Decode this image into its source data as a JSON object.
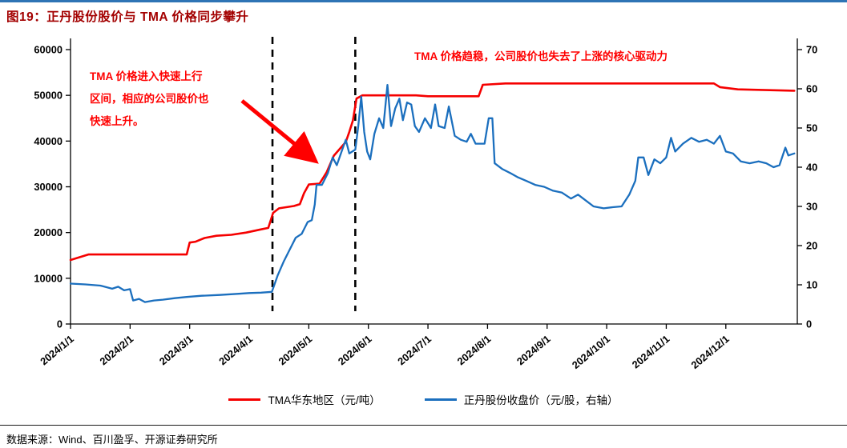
{
  "title": "图19：正丹股份股价与 TMA 价格同步攀升",
  "colors": {
    "topbar_blue": "#2E74B5",
    "title_red": "#A30000",
    "annotation_red": "#FF0000",
    "tma_red": "#F50000",
    "stock_blue": "#1B6FBE",
    "axis_black": "#000000"
  },
  "annotations": {
    "left": {
      "lines": [
        "TMA 价格进入快速上行",
        "区间，相应的公司股价也",
        "快速上升。"
      ]
    },
    "right": "TMA 价格趋稳，公司股价也失去了上涨的核心驱动力"
  },
  "source": "数据来源：Wind、百川盈孚、开源证券研究所",
  "chart_data": {
    "type": "line",
    "title": "图19：正丹股份股价与 TMA 价格同步攀升",
    "x_axis": {
      "domain": [
        0,
        12.2
      ],
      "tick_labels": [
        "2024/1/1",
        "2024/2/1",
        "2024/3/1",
        "2024/4/1",
        "2024/5/1",
        "2024/6/1",
        "2024/7/1",
        "2024/8/1",
        "2024/9/1",
        "2024/10/1",
        "2024/11/1",
        "2024/12/1"
      ]
    },
    "y_left": {
      "min": 0,
      "max": 60000,
      "step": 10000
    },
    "y_right": {
      "min": 0,
      "max": 70,
      "step": 10
    },
    "grid": false,
    "legend_position": "bottom",
    "event_vlines": [
      3.39,
      4.78
    ],
    "series": [
      {
        "name": "TMA华东地区（元/吨）",
        "axis": "left",
        "color": "#F50000",
        "points": [
          [
            0.0,
            14000
          ],
          [
            0.3,
            15200
          ],
          [
            1.0,
            15200
          ],
          [
            1.95,
            15200
          ],
          [
            2.0,
            17800
          ],
          [
            2.1,
            18000
          ],
          [
            2.25,
            18800
          ],
          [
            2.45,
            19300
          ],
          [
            2.7,
            19500
          ],
          [
            2.95,
            20000
          ],
          [
            3.2,
            20700
          ],
          [
            3.32,
            21000
          ],
          [
            3.4,
            24300
          ],
          [
            3.5,
            25300
          ],
          [
            3.75,
            25800
          ],
          [
            3.85,
            26200
          ],
          [
            3.92,
            28600
          ],
          [
            4.0,
            30500
          ],
          [
            4.18,
            30700
          ],
          [
            4.3,
            33200
          ],
          [
            4.42,
            36800
          ],
          [
            4.52,
            38300
          ],
          [
            4.62,
            39800
          ],
          [
            4.68,
            42000
          ],
          [
            4.74,
            44500
          ],
          [
            4.8,
            49300
          ],
          [
            4.9,
            50000
          ],
          [
            5.8,
            50000
          ],
          [
            6.0,
            49800
          ],
          [
            6.85,
            49800
          ],
          [
            6.92,
            52300
          ],
          [
            7.3,
            52600
          ],
          [
            9.4,
            52600
          ],
          [
            10.8,
            52600
          ],
          [
            10.9,
            51800
          ],
          [
            11.2,
            51300
          ],
          [
            12.15,
            51000
          ]
        ]
      },
      {
        "name": "正丹股份收盘价（元/股，右轴）",
        "axis": "right",
        "color": "#1B6FBE",
        "points": [
          [
            0.0,
            10.3
          ],
          [
            0.25,
            10.1
          ],
          [
            0.5,
            9.8
          ],
          [
            0.7,
            9.0
          ],
          [
            0.8,
            9.5
          ],
          [
            0.9,
            8.6
          ],
          [
            1.0,
            8.9
          ],
          [
            1.05,
            6.0
          ],
          [
            1.15,
            6.4
          ],
          [
            1.25,
            5.6
          ],
          [
            1.4,
            6.0
          ],
          [
            1.55,
            6.2
          ],
          [
            1.75,
            6.6
          ],
          [
            1.95,
            6.9
          ],
          [
            2.2,
            7.2
          ],
          [
            2.5,
            7.4
          ],
          [
            2.8,
            7.7
          ],
          [
            3.0,
            7.9
          ],
          [
            3.2,
            8.0
          ],
          [
            3.38,
            8.2
          ],
          [
            3.48,
            12.5
          ],
          [
            3.58,
            16.0
          ],
          [
            3.68,
            19.0
          ],
          [
            3.78,
            22.0
          ],
          [
            3.88,
            23.0
          ],
          [
            3.98,
            26.0
          ],
          [
            4.05,
            26.5
          ],
          [
            4.1,
            30.5
          ],
          [
            4.13,
            35.5
          ],
          [
            4.22,
            35.5
          ],
          [
            4.32,
            38.5
          ],
          [
            4.4,
            42.5
          ],
          [
            4.47,
            40.5
          ],
          [
            4.55,
            44.0
          ],
          [
            4.62,
            47.0
          ],
          [
            4.68,
            43.5
          ],
          [
            4.78,
            44.5
          ],
          [
            4.83,
            50.5
          ],
          [
            4.88,
            58.0
          ],
          [
            4.93,
            49.0
          ],
          [
            4.98,
            44.0
          ],
          [
            5.03,
            42.0
          ],
          [
            5.1,
            48.5
          ],
          [
            5.18,
            52.5
          ],
          [
            5.25,
            50.0
          ],
          [
            5.32,
            61.0
          ],
          [
            5.38,
            50.5
          ],
          [
            5.45,
            55.0
          ],
          [
            5.52,
            57.5
          ],
          [
            5.58,
            52.0
          ],
          [
            5.65,
            56.5
          ],
          [
            5.72,
            56.0
          ],
          [
            5.78,
            50.5
          ],
          [
            5.85,
            49.0
          ],
          [
            5.95,
            52.5
          ],
          [
            6.05,
            50.0
          ],
          [
            6.12,
            56.0
          ],
          [
            6.18,
            50.5
          ],
          [
            6.28,
            50.0
          ],
          [
            6.35,
            55.5
          ],
          [
            6.45,
            48.0
          ],
          [
            6.55,
            47.0
          ],
          [
            6.65,
            46.5
          ],
          [
            6.72,
            48.5
          ],
          [
            6.8,
            46.0
          ],
          [
            6.95,
            46.0
          ],
          [
            7.02,
            52.5
          ],
          [
            7.08,
            52.5
          ],
          [
            7.12,
            41.0
          ],
          [
            7.25,
            39.5
          ],
          [
            7.38,
            38.5
          ],
          [
            7.5,
            37.5
          ],
          [
            7.65,
            36.5
          ],
          [
            7.8,
            35.5
          ],
          [
            7.95,
            35.0
          ],
          [
            8.1,
            34.0
          ],
          [
            8.25,
            33.5
          ],
          [
            8.4,
            32.0
          ],
          [
            8.52,
            33.0
          ],
          [
            8.65,
            31.5
          ],
          [
            8.78,
            30.0
          ],
          [
            8.95,
            29.5
          ],
          [
            9.1,
            29.8
          ],
          [
            9.25,
            30.0
          ],
          [
            9.38,
            33.0
          ],
          [
            9.48,
            36.5
          ],
          [
            9.53,
            42.5
          ],
          [
            9.62,
            42.5
          ],
          [
            9.7,
            38.0
          ],
          [
            9.8,
            42.0
          ],
          [
            9.9,
            41.0
          ],
          [
            10.0,
            42.5
          ],
          [
            10.08,
            47.5
          ],
          [
            10.15,
            44.0
          ],
          [
            10.28,
            46.0
          ],
          [
            10.42,
            47.5
          ],
          [
            10.55,
            46.5
          ],
          [
            10.68,
            47.0
          ],
          [
            10.8,
            46.0
          ],
          [
            10.9,
            48.0
          ],
          [
            11.0,
            44.0
          ],
          [
            11.12,
            43.5
          ],
          [
            11.25,
            41.5
          ],
          [
            11.4,
            41.0
          ],
          [
            11.55,
            41.5
          ],
          [
            11.68,
            41.0
          ],
          [
            11.8,
            40.0
          ],
          [
            11.9,
            40.5
          ],
          [
            12.0,
            45.0
          ],
          [
            12.05,
            43.0
          ],
          [
            12.15,
            43.5
          ]
        ]
      }
    ]
  }
}
